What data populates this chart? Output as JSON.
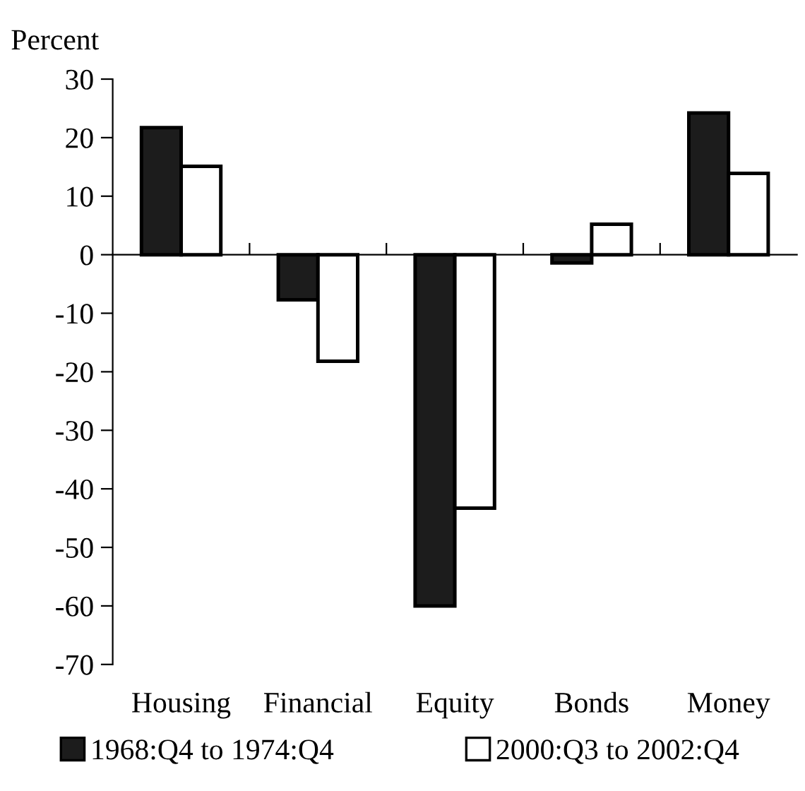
{
  "chart_data": {
    "type": "bar",
    "ylabel": "Percent",
    "categories": [
      "Housing",
      "Financial",
      "Equity",
      "Bonds",
      "Money"
    ],
    "series": [
      {
        "name": "1968:Q4 to 1974:Q4",
        "color": "#1c1c1c",
        "values": [
          21.7,
          -7.7,
          -60,
          -1.4,
          24.2
        ]
      },
      {
        "name": "2000:Q3 to 2002:Q4",
        "color": "#ffffff",
        "values": [
          15.1,
          -18.2,
          -43.3,
          5.2,
          13.9
        ]
      }
    ],
    "ylim": [
      -70,
      30
    ],
    "yticks": [
      -70,
      -60,
      -50,
      -40,
      -30,
      -20,
      -10,
      0,
      10,
      20,
      30
    ],
    "legend": "bottom"
  }
}
